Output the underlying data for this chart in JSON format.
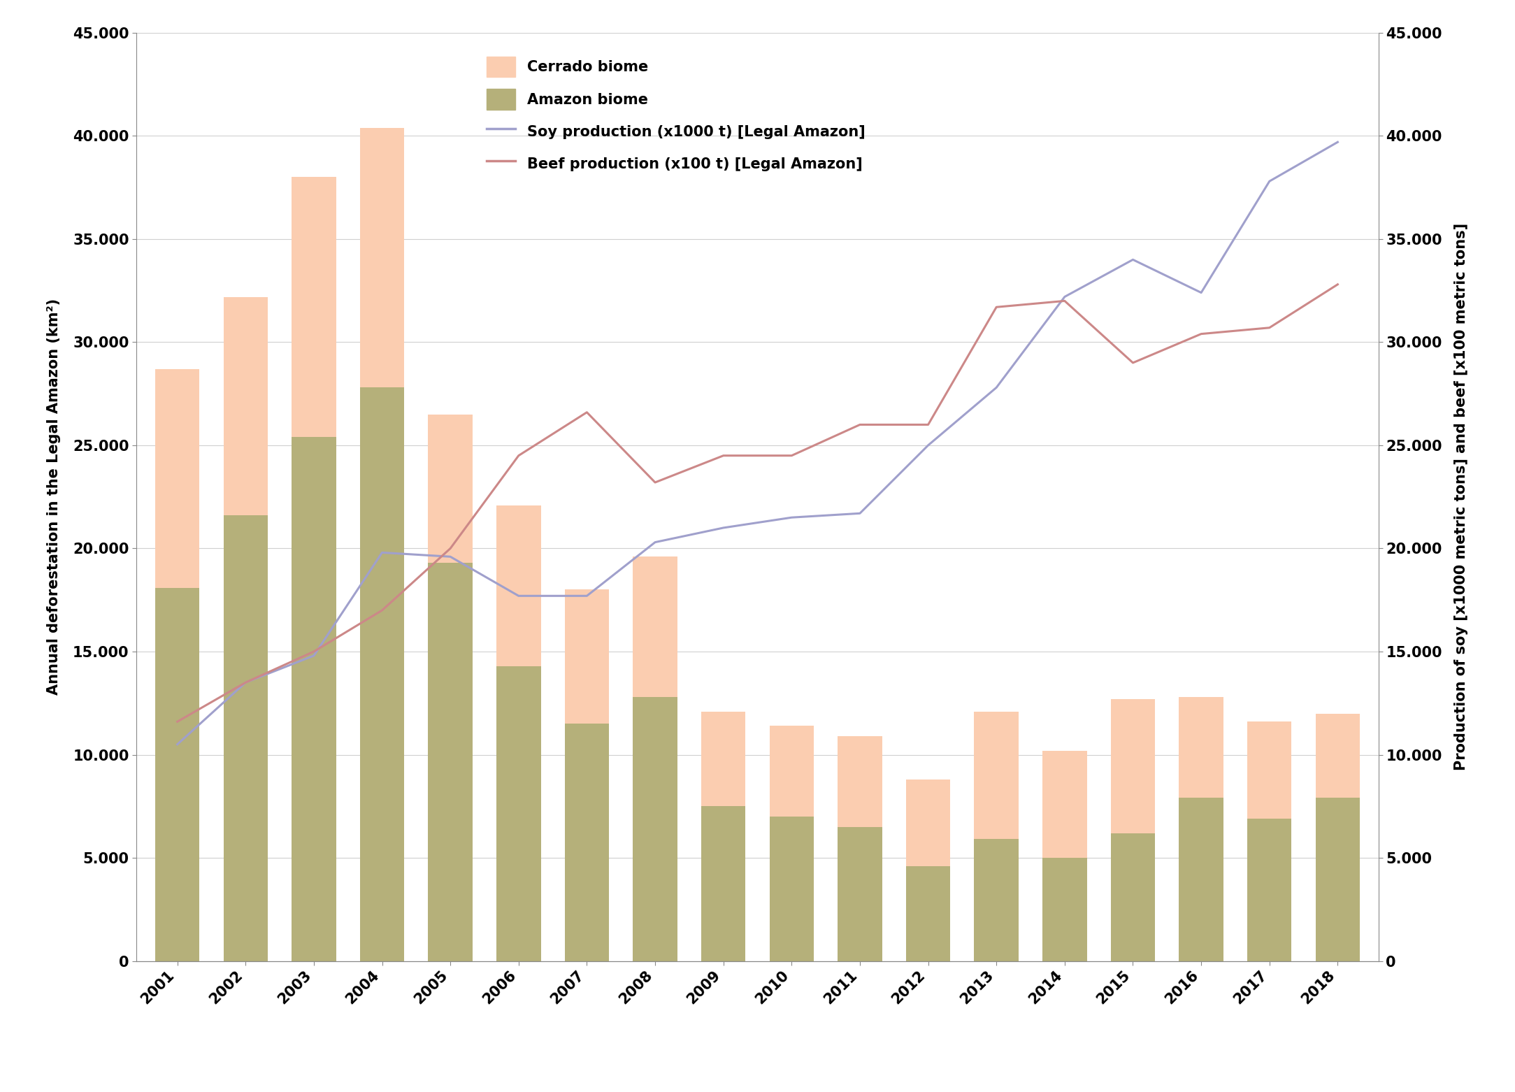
{
  "years": [
    2001,
    2002,
    2003,
    2004,
    2005,
    2006,
    2007,
    2008,
    2009,
    2010,
    2011,
    2012,
    2013,
    2014,
    2015,
    2016,
    2017,
    2018
  ],
  "amazon_biome": [
    18100,
    21600,
    25400,
    27800,
    19300,
    14300,
    11500,
    12800,
    7500,
    7000,
    6500,
    4600,
    5900,
    5000,
    6200,
    7900,
    6900,
    7900
  ],
  "cerrado_biome": [
    10600,
    10600,
    12600,
    12600,
    7200,
    7800,
    6500,
    6800,
    4600,
    4400,
    4400,
    4200,
    6200,
    5200,
    6500,
    4900,
    4700,
    4100
  ],
  "soy_production": [
    10500,
    13500,
    14800,
    19800,
    19600,
    17700,
    17700,
    20300,
    21000,
    21500,
    21700,
    25000,
    27800,
    32200,
    34000,
    32400,
    37800,
    39700
  ],
  "beef_production": [
    11600,
    13500,
    15000,
    17000,
    20000,
    24500,
    26600,
    23200,
    24500,
    24500,
    26000,
    26000,
    31700,
    32000,
    29000,
    30400,
    30700,
    32800
  ],
  "cerrado_color": "#FBCDB0",
  "amazon_color": "#B5B07A",
  "soy_color": "#A0A0CC",
  "beef_color": "#CC8888",
  "ylim": [
    0,
    45000
  ],
  "yticks": [
    0,
    5000,
    10000,
    15000,
    20000,
    25000,
    30000,
    35000,
    40000,
    45000
  ],
  "ylabel_left": "Annual deforestation in the Legal Amazon (km²)",
  "ylabel_right": "Production of soy [x1000 metric tons] and beef [x100 metric tons]",
  "background_color": "#FFFFFF",
  "legend_labels": [
    "Cerrado biome",
    "Amazon biome",
    "Soy production (x1000 t) [Legal Amazon]",
    "Beef production (x100 t) [Legal Amazon]"
  ],
  "grid_color": "#D0D0D0",
  "tick_label_fontsize": 15,
  "axis_label_fontsize": 15,
  "bar_width": 0.65
}
